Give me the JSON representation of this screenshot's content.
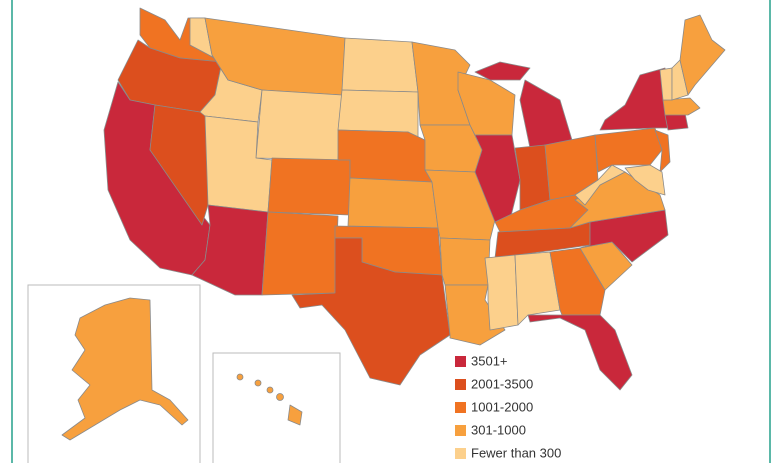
{
  "legend": {
    "items": [
      {
        "label": "3501+",
        "color": "#c9283b"
      },
      {
        "label": "2001-3500",
        "color": "#dc4f1e"
      },
      {
        "label": "1001-2000",
        "color": "#f07322"
      },
      {
        "label": "301-1000",
        "color": "#f7a03e"
      },
      {
        "label": "Fewer than 300",
        "color": "#fcd08c"
      }
    ]
  }
}
